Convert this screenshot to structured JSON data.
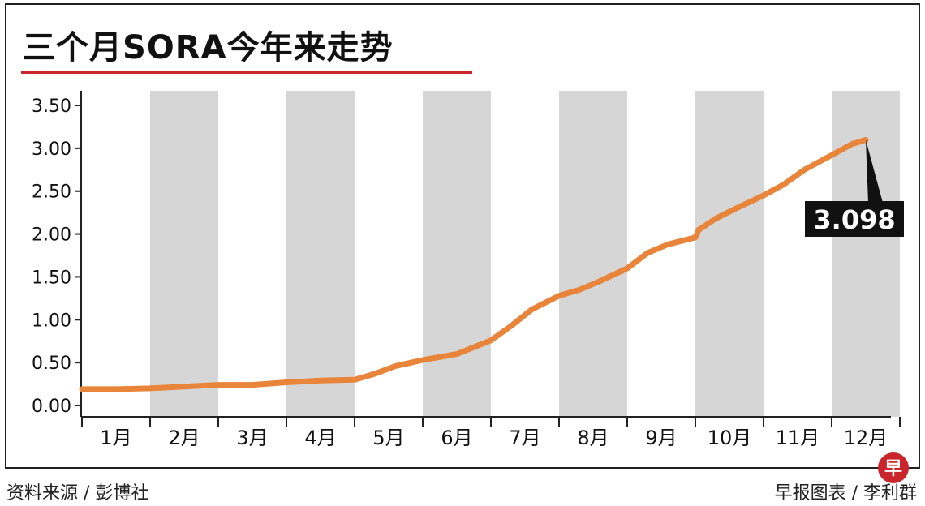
{
  "title": "三个月SORA今年来走势",
  "source_text": "资料来源 / 彭博社",
  "credit_text": "早报图表 / 李利群",
  "logo_char": "早",
  "colors": {
    "line": "#e8853a",
    "band": "#d6d6d6",
    "accent": "#c9252b",
    "callout_bg": "#111111",
    "callout_text": "#ffffff"
  },
  "chart_data": {
    "type": "line",
    "title": "三个月SORA今年来走势",
    "xlabel": "",
    "ylabel": "",
    "ylim": [
      0,
      3.5
    ],
    "grid": false,
    "yticks": [
      "0.00",
      "0.50",
      "1.00",
      "1.50",
      "2.00",
      "2.50",
      "3.00",
      "3.50"
    ],
    "ytick_values": [
      0,
      0.5,
      1.0,
      1.5,
      2.0,
      2.5,
      3.0,
      3.5
    ],
    "categories": [
      "1月",
      "2月",
      "3月",
      "4月",
      "5月",
      "6月",
      "7月",
      "8月",
      "9月",
      "10月",
      "11月",
      "12月"
    ],
    "shaded_months": [
      1,
      3,
      5,
      7,
      9,
      11
    ],
    "series": [
      {
        "x": [
          0,
          0.5,
          1.0,
          1.5,
          2.0,
          2.5,
          3.0,
          3.5,
          4.0,
          4.3,
          4.6,
          5.0,
          5.5,
          6.0,
          6.3,
          6.6,
          7.0,
          7.3,
          7.6,
          8.0,
          8.3,
          8.6,
          9.0,
          9.05,
          9.3,
          9.6,
          10.0,
          10.3,
          10.6,
          11.0,
          11.3,
          11.5
        ],
        "values": [
          0.19,
          0.19,
          0.2,
          0.22,
          0.24,
          0.24,
          0.27,
          0.29,
          0.3,
          0.37,
          0.46,
          0.53,
          0.6,
          0.76,
          0.93,
          1.12,
          1.28,
          1.35,
          1.45,
          1.6,
          1.78,
          1.88,
          1.96,
          2.05,
          2.18,
          2.3,
          2.45,
          2.58,
          2.75,
          2.92,
          3.05,
          3.098
        ]
      }
    ],
    "annotation": {
      "text": "3.098",
      "value": 3.098
    }
  }
}
